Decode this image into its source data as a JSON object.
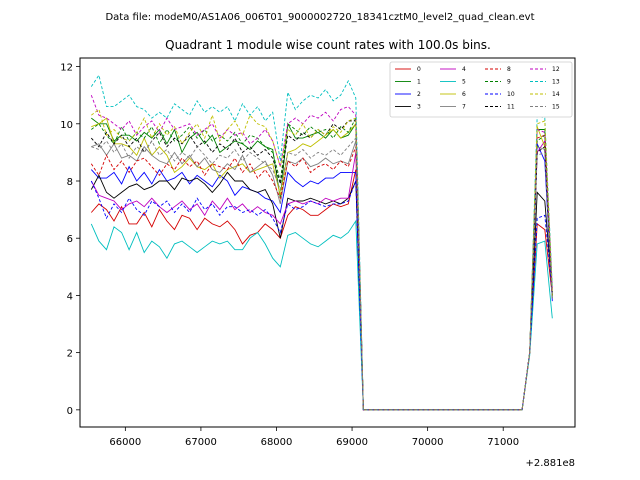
{
  "chart_data": {
    "type": "line",
    "suptitle": "Data file: modeM0/AS1A06_006T01_9000002720_18341cztM0_level2_quad_clean.evt",
    "title": "Quadrant 1 module wise count rates with 100.0s bins.",
    "xlabel": "",
    "ylabel": "",
    "x_offset_label": "+2.881e8",
    "xlim": [
      65400,
      71950
    ],
    "ylim": [
      -0.6,
      12.3
    ],
    "xticks": [
      66000,
      67000,
      68000,
      69000,
      70000,
      71000
    ],
    "yticks": [
      0,
      2,
      4,
      6,
      8,
      10,
      12
    ],
    "xtick_labels": [
      "66000",
      "67000",
      "68000",
      "69000",
      "70000",
      "71000"
    ],
    "ytick_labels": [
      "0",
      "2",
      "4",
      "6",
      "8",
      "10",
      "12"
    ],
    "grid": false,
    "legend_position": "top-right",
    "x_start": 65550,
    "x_step": 100,
    "gap_range": [
      69250,
      71250
    ],
    "tail_x": [
      71250,
      71350,
      71450,
      71550,
      71650
    ],
    "series": [
      {
        "name": "0",
        "color": "#d40000",
        "dash": "solid",
        "values": [
          6.9,
          7.2,
          7.0,
          6.6,
          7.1,
          6.5,
          6.5,
          6.9,
          6.4,
          7.0,
          6.6,
          6.3,
          6.8,
          6.7,
          6.3,
          6.7,
          6.5,
          6.4,
          6.6,
          6.3,
          5.8,
          6.1,
          6.2,
          6.5,
          6.3,
          6.0,
          6.8,
          7.1,
          7.0,
          6.8,
          6.8,
          7.0,
          7.2,
          7.1,
          7.2,
          8.4
        ],
        "tail": [
          0.0,
          2.0,
          6.5,
          6.3,
          4.0
        ]
      },
      {
        "name": "1",
        "color": "#008000",
        "dash": "solid",
        "values": [
          10.2,
          10.0,
          10.0,
          9.4,
          9.6,
          9.6,
          9.4,
          9.7,
          9.5,
          9.8,
          9.3,
          9.8,
          9.0,
          9.5,
          9.7,
          9.3,
          9.6,
          9.0,
          9.2,
          9.4,
          9.3,
          9.1,
          9.4,
          9.2,
          9.1,
          7.4,
          10.0,
          9.5,
          9.5,
          9.6,
          9.7,
          9.5,
          9.8,
          9.5,
          9.6,
          10.0
        ],
        "tail": [
          0.0,
          2.0,
          9.8,
          9.8,
          3.9
        ]
      },
      {
        "name": "2",
        "color": "#0000ff",
        "dash": "solid",
        "values": [
          8.4,
          8.1,
          8.1,
          8.3,
          7.9,
          8.5,
          8.0,
          8.3,
          7.9,
          8.4,
          8.0,
          8.1,
          8.3,
          7.9,
          8.2,
          8.0,
          7.8,
          8.2,
          8.0,
          7.5,
          7.8,
          7.7,
          7.6,
          7.4,
          7.3,
          6.9,
          8.3,
          8.0,
          7.8,
          8.0,
          7.9,
          8.1,
          8.1,
          8.3,
          8.3,
          8.3
        ],
        "tail": [
          0.0,
          2.0,
          9.3,
          8.7,
          3.8
        ]
      },
      {
        "name": "3",
        "color": "#000000",
        "dash": "solid",
        "values": [
          7.7,
          8.2,
          7.6,
          7.4,
          7.6,
          7.8,
          7.9,
          7.7,
          7.8,
          8.0,
          8.0,
          7.7,
          8.1,
          8.0,
          8.1,
          7.9,
          7.6,
          7.9,
          8.3,
          8.0,
          8.0,
          7.7,
          7.6,
          7.7,
          7.2,
          6.0,
          7.4,
          7.3,
          7.3,
          7.4,
          7.3,
          7.2,
          7.3,
          7.2,
          7.4,
          8.0
        ],
        "tail": [
          0.0,
          2.0,
          7.6,
          7.3,
          4.1
        ]
      },
      {
        "name": "4",
        "color": "#bf00bf",
        "dash": "solid",
        "values": [
          8.0,
          7.5,
          7.4,
          7.3,
          7.0,
          7.2,
          7.3,
          7.1,
          7.4,
          7.1,
          6.9,
          7.1,
          7.3,
          7.0,
          7.2,
          6.8,
          7.3,
          7.0,
          7.4,
          7.0,
          7.2,
          6.9,
          7.1,
          6.9,
          6.8,
          6.5,
          7.2,
          7.3,
          7.2,
          7.3,
          7.2,
          7.4,
          7.3,
          7.4,
          7.4,
          9.0
        ],
        "tail": [
          0.0,
          2.0,
          9.0,
          9.4,
          4.0
        ]
      },
      {
        "name": "5",
        "color": "#00bfbf",
        "dash": "solid",
        "values": [
          6.5,
          5.9,
          5.6,
          6.4,
          6.2,
          5.6,
          6.2,
          5.5,
          5.9,
          5.7,
          5.3,
          5.8,
          5.9,
          5.7,
          5.5,
          5.7,
          5.9,
          5.8,
          5.9,
          5.6,
          5.6,
          6.0,
          6.2,
          5.8,
          5.3,
          5.0,
          6.1,
          6.2,
          6.0,
          5.8,
          5.7,
          5.9,
          6.1,
          6.0,
          6.2,
          6.6
        ],
        "tail": [
          0.0,
          1.9,
          5.8,
          5.9,
          3.2
        ]
      },
      {
        "name": "6",
        "color": "#bfbf00",
        "dash": "solid",
        "values": [
          9.9,
          10.0,
          10.2,
          9.3,
          9.3,
          9.2,
          8.9,
          9.5,
          8.9,
          9.2,
          8.9,
          8.3,
          8.5,
          8.8,
          8.5,
          8.4,
          8.6,
          8.1,
          8.4,
          8.5,
          8.6,
          8.3,
          8.4,
          8.5,
          8.6,
          7.5,
          9.0,
          9.1,
          9.3,
          9.2,
          9.4,
          9.6,
          9.8,
          9.5,
          9.7,
          10.0
        ],
        "tail": [
          0.0,
          2.0,
          9.9,
          9.2,
          4.0
        ]
      },
      {
        "name": "7",
        "color": "#808080",
        "dash": "solid",
        "values": [
          9.2,
          9.3,
          8.9,
          9.3,
          8.8,
          8.9,
          8.7,
          9.2,
          8.9,
          8.7,
          8.6,
          9.0,
          8.6,
          8.9,
          8.5,
          8.8,
          8.4,
          8.3,
          8.6,
          8.4,
          8.9,
          8.3,
          8.5,
          8.7,
          8.2,
          7.2,
          8.7,
          8.6,
          8.8,
          8.5,
          8.6,
          8.8,
          8.6,
          8.7,
          8.6,
          9.4
        ],
        "tail": [
          0.0,
          2.0,
          9.2,
          9.1,
          3.9
        ]
      },
      {
        "name": "8",
        "color": "#d40000",
        "dash": "dashed",
        "values": [
          8.6,
          8.2,
          8.9,
          8.4,
          8.7,
          8.3,
          8.7,
          8.8,
          8.5,
          8.2,
          8.6,
          8.4,
          8.8,
          8.5,
          8.7,
          8.2,
          8.6,
          8.5,
          8.4,
          8.8,
          8.3,
          8.6,
          8.1,
          8.4,
          8.0,
          7.4,
          8.7,
          8.5,
          8.8,
          8.3,
          8.5,
          8.6,
          8.4,
          8.7,
          8.5,
          9.2
        ],
        "tail": [
          0.0,
          2.0,
          9.5,
          9.6,
          4.2
        ]
      },
      {
        "name": "9",
        "color": "#008000",
        "dash": "dashed",
        "values": [
          9.8,
          10.0,
          9.6,
          9.3,
          9.9,
          9.4,
          9.7,
          9.5,
          9.9,
          9.3,
          9.8,
          9.4,
          9.6,
          9.9,
          9.5,
          9.8,
          9.4,
          9.6,
          9.4,
          9.7,
          9.3,
          9.6,
          9.5,
          9.2,
          9.0,
          8.0,
          10.0,
          9.8,
          9.6,
          9.9,
          9.7,
          9.8,
          9.5,
          9.9,
          9.7,
          10.2
        ],
        "tail": [
          0.0,
          2.0,
          9.4,
          9.6,
          4.0
        ]
      },
      {
        "name": "10",
        "color": "#0000ff",
        "dash": "dashed",
        "values": [
          8.0,
          7.4,
          6.7,
          7.2,
          6.9,
          7.4,
          7.0,
          6.8,
          7.3,
          7.1,
          7.3,
          6.9,
          7.2,
          6.9,
          7.4,
          7.0,
          7.2,
          6.8,
          7.1,
          7.1,
          6.9,
          7.0,
          6.8,
          7.0,
          6.7,
          6.2,
          7.2,
          7.0,
          7.1,
          7.3,
          7.2,
          7.1,
          7.2,
          7.2,
          7.3,
          8.0
        ],
        "tail": [
          0.0,
          2.0,
          6.7,
          6.8,
          4.1
        ]
      },
      {
        "name": "11",
        "color": "#000000",
        "dash": "dashed",
        "values": [
          9.5,
          9.2,
          9.7,
          9.3,
          9.6,
          9.2,
          9.5,
          9.0,
          9.4,
          9.7,
          9.2,
          9.5,
          9.3,
          9.6,
          9.2,
          9.4,
          9.0,
          9.3,
          9.1,
          9.5,
          9.0,
          9.2,
          8.9,
          9.1,
          8.8,
          7.9,
          9.6,
          9.4,
          9.7,
          9.5,
          9.8,
          9.6,
          10.0,
          9.8,
          10.1,
          10.1
        ],
        "tail": [
          0.0,
          2.0,
          9.0,
          9.2,
          4.0
        ]
      },
      {
        "name": "12",
        "color": "#bf00bf",
        "dash": "dashed",
        "values": [
          11.0,
          10.3,
          10.2,
          10.0,
          9.8,
          10.1,
          9.6,
          9.9,
          10.1,
          9.7,
          10.2,
          9.8,
          9.9,
          10.0,
          9.6,
          9.8,
          10.0,
          9.5,
          9.8,
          9.6,
          9.7,
          9.3,
          9.5,
          9.8,
          9.4,
          8.5,
          10.0,
          10.2,
          10.0,
          10.3,
          10.2,
          10.4,
          10.1,
          10.5,
          10.6,
          10.3
        ],
        "tail": [
          0.0,
          2.0,
          9.8,
          9.7,
          4.2
        ]
      },
      {
        "name": "13",
        "color": "#00bfbf",
        "dash": "dashed",
        "values": [
          11.3,
          11.7,
          10.6,
          10.6,
          10.8,
          11.0,
          10.6,
          10.5,
          10.2,
          10.4,
          10.2,
          10.7,
          10.5,
          10.3,
          10.8,
          10.4,
          10.6,
          10.4,
          10.6,
          10.1,
          10.7,
          10.3,
          10.6,
          10.1,
          10.4,
          8.7,
          11.1,
          10.5,
          10.8,
          11.0,
          10.9,
          11.2,
          10.8,
          11.0,
          11.5,
          10.9
        ],
        "tail": [
          0.0,
          2.0,
          10.3,
          10.2,
          4.3
        ]
      },
      {
        "name": "14",
        "color": "#bfbf00",
        "dash": "dashed",
        "values": [
          10.3,
          10.5,
          9.6,
          9.8,
          9.5,
          9.4,
          9.7,
          10.2,
          9.5,
          10.0,
          9.6,
          9.9,
          9.3,
          9.7,
          10.0,
          9.5,
          10.3,
          9.4,
          9.8,
          10.1,
          9.6,
          10.3,
          10.0,
          9.9,
          9.4,
          8.5,
          9.8,
          9.6,
          10.0,
          9.5,
          9.8,
          9.6,
          9.9,
          9.7,
          10.1,
          10.2
        ],
        "tail": [
          0.0,
          2.0,
          10.0,
          10.1,
          4.0
        ]
      },
      {
        "name": "15",
        "color": "#808080",
        "dash": "dashed",
        "values": [
          9.2,
          9.1,
          9.4,
          9.0,
          9.3,
          8.8,
          9.2,
          9.0,
          9.4,
          8.9,
          9.1,
          8.7,
          9.0,
          8.8,
          9.2,
          8.9,
          8.6,
          8.9,
          8.8,
          9.1,
          8.7,
          9.0,
          8.8,
          8.6,
          8.4,
          7.7,
          9.0,
          8.9,
          9.1,
          8.8,
          9.0,
          8.9,
          9.1,
          8.9,
          9.2,
          9.5
        ],
        "tail": [
          0.0,
          2.0,
          8.9,
          9.0,
          3.9
        ]
      }
    ]
  }
}
